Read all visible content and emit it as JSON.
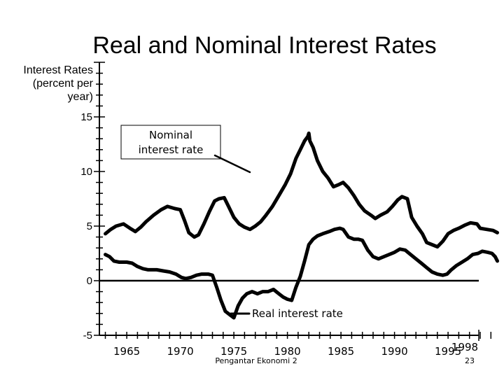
{
  "chart_data": {
    "type": "line",
    "title": "Real and Nominal Interest Rates",
    "ylabel_lines": [
      "Interest Rates",
      "(percent per",
      "year)"
    ],
    "xlabel": "",
    "ylim": [
      -5,
      20
    ],
    "xlim": [
      1962.5,
      1999.5
    ],
    "y_ticks": [
      15,
      10,
      5,
      0,
      -5
    ],
    "y_tick_labels": [
      "15",
      "10",
      "5",
      "0",
      "-5"
    ],
    "x_ticks": [
      1965,
      1970,
      1975,
      1980,
      1985,
      1990,
      1995,
      1998
    ],
    "x_tick_labels": [
      "1965",
      "1970",
      "1975",
      "1980",
      "1985",
      "1990",
      "1995",
      "1998"
    ],
    "zero_line": true,
    "series": [
      {
        "name": "Nominal interest rate",
        "points": [
          [
            1963,
            4.3
          ],
          [
            1963.5,
            4.7
          ],
          [
            1964,
            5.0
          ],
          [
            1964.7,
            5.2
          ],
          [
            1965.3,
            4.8
          ],
          [
            1965.8,
            4.5
          ],
          [
            1966.3,
            4.9
          ],
          [
            1966.8,
            5.4
          ],
          [
            1967.5,
            6.0
          ],
          [
            1968.2,
            6.5
          ],
          [
            1968.8,
            6.8
          ],
          [
            1969.5,
            6.6
          ],
          [
            1970,
            6.5
          ],
          [
            1970.4,
            5.5
          ],
          [
            1970.8,
            4.4
          ],
          [
            1971.3,
            4.0
          ],
          [
            1971.7,
            4.2
          ],
          [
            1972.2,
            5.2
          ],
          [
            1972.7,
            6.3
          ],
          [
            1973.2,
            7.3
          ],
          [
            1973.6,
            7.5
          ],
          [
            1974.1,
            7.6
          ],
          [
            1974.5,
            6.8
          ],
          [
            1975.0,
            5.8
          ],
          [
            1975.5,
            5.2
          ],
          [
            1976.0,
            4.9
          ],
          [
            1976.5,
            4.7
          ],
          [
            1977.0,
            5.0
          ],
          [
            1977.5,
            5.4
          ],
          [
            1978.0,
            6.0
          ],
          [
            1978.6,
            6.8
          ],
          [
            1979.2,
            7.8
          ],
          [
            1979.8,
            8.8
          ],
          [
            1980.3,
            9.8
          ],
          [
            1980.8,
            11.2
          ],
          [
            1981.2,
            12.0
          ],
          [
            1981.6,
            12.8
          ],
          [
            1981.9,
            13.2
          ],
          [
            1982.0,
            13.5
          ],
          [
            1982.1,
            12.8
          ],
          [
            1982.4,
            12.2
          ],
          [
            1982.8,
            11.0
          ],
          [
            1983.3,
            10.0
          ],
          [
            1983.8,
            9.4
          ],
          [
            1984.3,
            8.6
          ],
          [
            1984.8,
            8.8
          ],
          [
            1985.2,
            9.0
          ],
          [
            1985.7,
            8.5
          ],
          [
            1986.2,
            7.8
          ],
          [
            1986.7,
            7.0
          ],
          [
            1987.2,
            6.4
          ],
          [
            1987.8,
            6.0
          ],
          [
            1988.2,
            5.7
          ],
          [
            1988.7,
            6.0
          ],
          [
            1989.3,
            6.3
          ],
          [
            1989.8,
            6.8
          ],
          [
            1990.3,
            7.4
          ],
          [
            1990.7,
            7.7
          ],
          [
            1991.2,
            7.5
          ],
          [
            1991.6,
            5.8
          ],
          [
            1992.1,
            5.0
          ],
          [
            1992.6,
            4.3
          ],
          [
            1993.0,
            3.5
          ],
          [
            1993.5,
            3.3
          ],
          [
            1994.0,
            3.1
          ],
          [
            1994.5,
            3.6
          ],
          [
            1995.0,
            4.3
          ],
          [
            1995.5,
            4.6
          ],
          [
            1996.0,
            4.8
          ],
          [
            1996.6,
            5.1
          ],
          [
            1997.1,
            5.3
          ],
          [
            1997.7,
            5.2
          ],
          [
            1998.0,
            4.8
          ],
          [
            1998.6,
            4.7
          ],
          [
            1999.2,
            4.6
          ],
          [
            1999.6,
            4.4
          ]
        ]
      },
      {
        "name": "Real interest rate",
        "points": [
          [
            1963,
            2.4
          ],
          [
            1963.4,
            2.2
          ],
          [
            1963.8,
            1.8
          ],
          [
            1964.3,
            1.7
          ],
          [
            1965.0,
            1.7
          ],
          [
            1965.5,
            1.6
          ],
          [
            1966.0,
            1.3
          ],
          [
            1966.5,
            1.1
          ],
          [
            1967.0,
            1.0
          ],
          [
            1967.8,
            1.0
          ],
          [
            1968.4,
            0.9
          ],
          [
            1969.0,
            0.8
          ],
          [
            1969.6,
            0.6
          ],
          [
            1970.1,
            0.3
          ],
          [
            1970.5,
            0.2
          ],
          [
            1971.0,
            0.3
          ],
          [
            1971.5,
            0.5
          ],
          [
            1972.0,
            0.6
          ],
          [
            1972.6,
            0.6
          ],
          [
            1973.0,
            0.5
          ],
          [
            1973.4,
            -0.6
          ],
          [
            1973.8,
            -1.8
          ],
          [
            1974.2,
            -2.8
          ],
          [
            1974.6,
            -3.1
          ],
          [
            1975.0,
            -3.4
          ],
          [
            1975.4,
            -2.3
          ],
          [
            1975.8,
            -1.6
          ],
          [
            1976.2,
            -1.2
          ],
          [
            1976.7,
            -1.0
          ],
          [
            1977.2,
            -1.2
          ],
          [
            1977.7,
            -1.0
          ],
          [
            1978.2,
            -1.0
          ],
          [
            1978.7,
            -0.8
          ],
          [
            1979.2,
            -1.2
          ],
          [
            1979.6,
            -1.5
          ],
          [
            1980.0,
            -1.7
          ],
          [
            1980.4,
            -1.8
          ],
          [
            1980.8,
            -0.6
          ],
          [
            1981.2,
            0.4
          ],
          [
            1981.6,
            1.8
          ],
          [
            1982.0,
            3.3
          ],
          [
            1982.4,
            3.8
          ],
          [
            1982.8,
            4.1
          ],
          [
            1983.3,
            4.3
          ],
          [
            1983.9,
            4.5
          ],
          [
            1984.4,
            4.7
          ],
          [
            1984.9,
            4.8
          ],
          [
            1985.2,
            4.7
          ],
          [
            1985.7,
            4.0
          ],
          [
            1986.2,
            3.8
          ],
          [
            1986.6,
            3.8
          ],
          [
            1987.0,
            3.7
          ],
          [
            1987.5,
            2.8
          ],
          [
            1988.0,
            2.2
          ],
          [
            1988.5,
            2.0
          ],
          [
            1989.0,
            2.2
          ],
          [
            1989.5,
            2.4
          ],
          [
            1990.0,
            2.6
          ],
          [
            1990.5,
            2.9
          ],
          [
            1991.0,
            2.8
          ],
          [
            1991.5,
            2.4
          ],
          [
            1992.0,
            2.0
          ],
          [
            1992.5,
            1.6
          ],
          [
            1993.0,
            1.2
          ],
          [
            1993.5,
            0.8
          ],
          [
            1994.0,
            0.6
          ],
          [
            1994.5,
            0.5
          ],
          [
            1994.9,
            0.6
          ],
          [
            1995.3,
            1.0
          ],
          [
            1995.8,
            1.4
          ],
          [
            1996.3,
            1.7
          ],
          [
            1996.8,
            2.0
          ],
          [
            1997.3,
            2.4
          ],
          [
            1997.8,
            2.5
          ],
          [
            1998.2,
            2.7
          ],
          [
            1998.7,
            2.6
          ],
          [
            1999.1,
            2.5
          ],
          [
            1999.4,
            2.2
          ],
          [
            1999.6,
            1.8
          ]
        ]
      }
    ],
    "annotations": [
      {
        "label_lines": [
          "Nominal",
          "interest rate"
        ],
        "series": "Nominal interest rate"
      },
      {
        "label": "Real interest rate",
        "series": "Real interest rate"
      }
    ]
  },
  "footer": {
    "source": "Pengantar Ekonomi 2",
    "page": "23"
  }
}
